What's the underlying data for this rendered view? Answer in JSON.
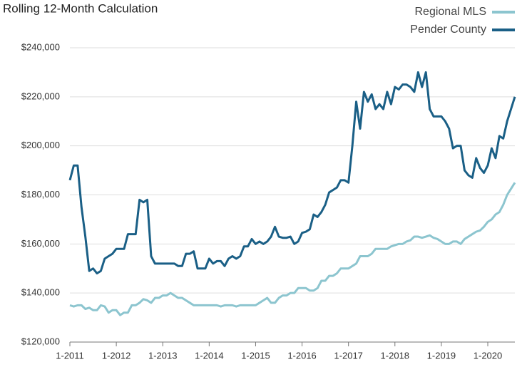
{
  "chart_data": {
    "type": "line",
    "title": "Rolling 12-Month Calculation",
    "categories": [
      "1-2011",
      null,
      null,
      null,
      null,
      null,
      null,
      null,
      null,
      null,
      null,
      null,
      "1-2012",
      null,
      null,
      null,
      null,
      null,
      null,
      null,
      null,
      null,
      null,
      null,
      "1-2013",
      null,
      null,
      null,
      null,
      null,
      null,
      null,
      null,
      null,
      null,
      null,
      "1-2014",
      null,
      null,
      null,
      null,
      null,
      null,
      null,
      null,
      null,
      null,
      null,
      "1-2015",
      null,
      null,
      null,
      null,
      null,
      null,
      null,
      null,
      null,
      null,
      null,
      "1-2016",
      null,
      null,
      null,
      null,
      null,
      null,
      null,
      null,
      null,
      null,
      null,
      "1-2017",
      null,
      null,
      null,
      null,
      null,
      null,
      null,
      null,
      null,
      null,
      null,
      "1-2018",
      null,
      null,
      null,
      null,
      null,
      null,
      null,
      null,
      null,
      null,
      null,
      "1-2019",
      null,
      null,
      null,
      null,
      null,
      null,
      null,
      null,
      null,
      null,
      null,
      "1-2020",
      null,
      null,
      null,
      null,
      null,
      null,
      null
    ],
    "series": [
      {
        "name": "Regional MLS",
        "color": "#8cc5cf",
        "values": [
          135000,
          134500,
          135000,
          135000,
          133500,
          134000,
          133000,
          133000,
          135000,
          134500,
          132000,
          133000,
          133000,
          131000,
          132000,
          132000,
          135000,
          135000,
          136000,
          137500,
          137000,
          136000,
          138000,
          138000,
          139000,
          139000,
          140000,
          139000,
          138000,
          138000,
          137000,
          136000,
          135000,
          135000,
          135000,
          135000,
          135000,
          135000,
          135000,
          134500,
          135000,
          135000,
          135000,
          134500,
          135000,
          135000,
          135000,
          135000,
          135000,
          136000,
          137000,
          138000,
          136000,
          136000,
          138000,
          139000,
          139000,
          140000,
          140000,
          142000,
          142000,
          142000,
          141000,
          141000,
          142000,
          145000,
          145000,
          147000,
          147000,
          148000,
          150000,
          150000,
          150000,
          151000,
          152000,
          155000,
          155000,
          155000,
          156000,
          158000,
          158000,
          158000,
          158000,
          159000,
          159500,
          160000,
          160000,
          161000,
          161500,
          163000,
          163000,
          162500,
          163000,
          163500,
          162500,
          162000,
          161000,
          160000,
          160000,
          161000,
          161000,
          160000,
          162000,
          163000,
          164000,
          165000,
          165500,
          167000,
          169000,
          170000,
          172000,
          173000,
          176000,
          180000,
          182500,
          185000
        ]
      },
      {
        "name": "Pender County",
        "color": "#1a5f86",
        "values": [
          186000,
          192000,
          192000,
          175000,
          163000,
          149000,
          150000,
          148000,
          149000,
          154000,
          155000,
          156000,
          158000,
          158000,
          158000,
          164000,
          164000,
          164000,
          178000,
          177000,
          178000,
          155000,
          152000,
          152000,
          152000,
          152000,
          152000,
          152000,
          151000,
          151000,
          156000,
          156000,
          157000,
          150000,
          150000,
          150000,
          154000,
          152000,
          153000,
          153000,
          151000,
          154000,
          155000,
          154000,
          155000,
          159000,
          159000,
          162000,
          160000,
          161000,
          160000,
          161000,
          163000,
          167000,
          163000,
          162500,
          162500,
          163000,
          160000,
          161000,
          164500,
          165000,
          166000,
          172000,
          171000,
          173000,
          176000,
          181000,
          182000,
          183000,
          186000,
          186000,
          185000,
          200000,
          218000,
          207000,
          222000,
          218000,
          221000,
          215000,
          217000,
          215000,
          222000,
          217000,
          224000,
          223000,
          225000,
          225000,
          224000,
          222000,
          230000,
          224000,
          230000,
          215000,
          212000,
          212000,
          212000,
          210000,
          207000,
          199000,
          200000,
          200000,
          190000,
          188000,
          187000,
          195000,
          191000,
          189000,
          192000,
          199000,
          195000,
          204000,
          203000,
          210000,
          215000,
          220000
        ]
      }
    ],
    "ylim": [
      120000,
      240000
    ],
    "yticks": [
      {
        "value": 120000,
        "label": "$120,000"
      },
      {
        "value": 140000,
        "label": "$140,000"
      },
      {
        "value": 160000,
        "label": "$160,000"
      },
      {
        "value": 180000,
        "label": "$180,000"
      },
      {
        "value": 200000,
        "label": "$200,000"
      },
      {
        "value": 220000,
        "label": "$220,000"
      },
      {
        "value": 240000,
        "label": "$240,000"
      }
    ],
    "grid": true,
    "legend": "top-right"
  }
}
